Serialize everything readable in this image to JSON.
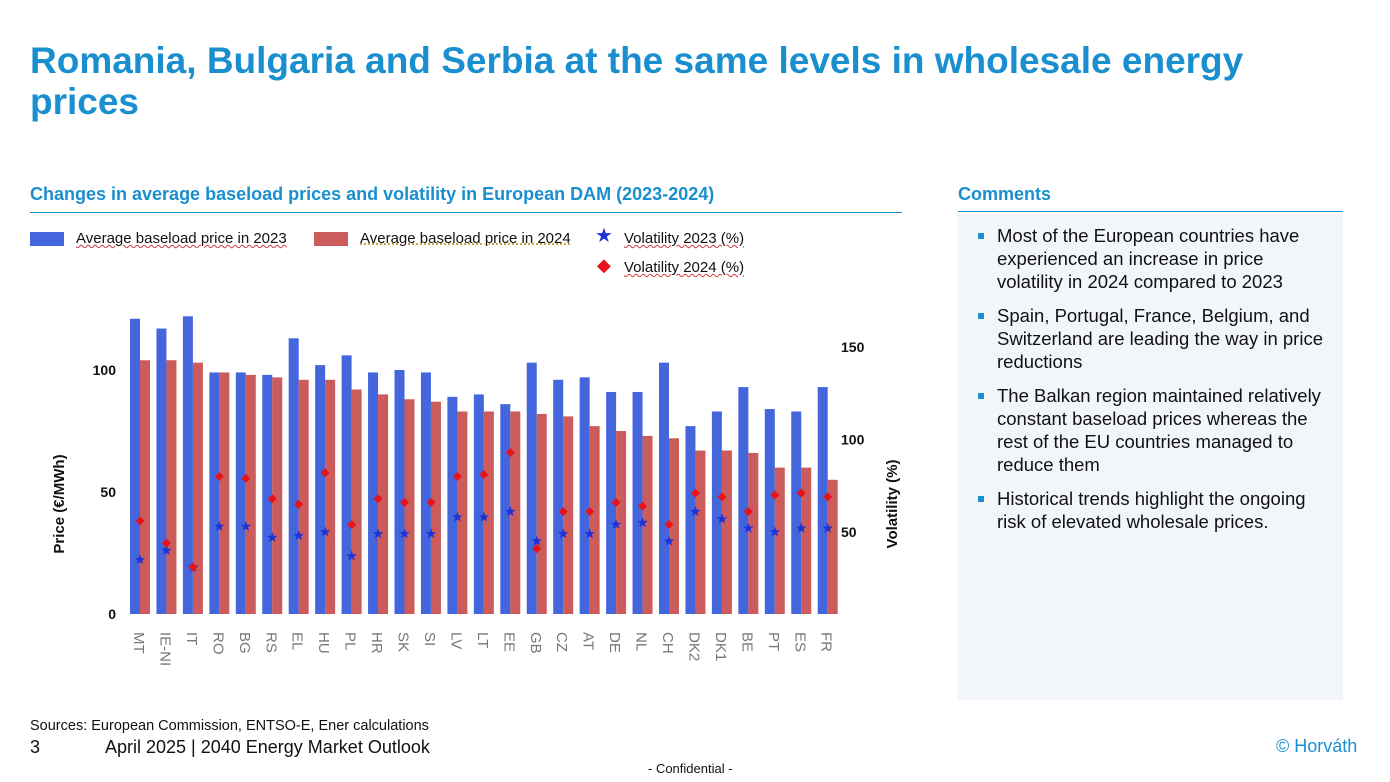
{
  "title": "Romania, Bulgaria and Serbia at the same levels in wholesale energy prices",
  "chart_heading": "Changes in average baseload prices and volatility in European DAM (2023-2024)",
  "comments_heading": "Comments",
  "comments": [
    "Most of the European countries have experienced an increase in price volatility in 2024 compared to 2023",
    "Spain, Portugal, France, Belgium, and Switzerland are leading the way in price reductions",
    "The Balkan region maintained relatively constant baseload prices whereas the rest of the EU countries managed to reduce them",
    "Historical trends highlight the ongoing risk of elevated wholesale prices."
  ],
  "legend": {
    "price_2023": "Average baseload price in 2023",
    "price_2024": "Average baseload price in 2024",
    "vol_2023": "Volatility 2023 (%)",
    "vol_2024": "Volatility 2024 (%)"
  },
  "sources": "Sources: European Commission, ENTSO-E, Ener calculations",
  "footer": {
    "page": "3",
    "text": "April 2025 | 2040 Energy Market Outlook",
    "copyright": "© Horváth",
    "confidential": "- Confidential -"
  },
  "colors": {
    "accent": "#1a8fcf",
    "bar_2023": "#4466dd",
    "bar_2024": "#cc5b5b",
    "star_2023": "#1f32d6",
    "diamond_2024": "#e8131a"
  },
  "chart_data": {
    "type": "bar",
    "categories": [
      "MT",
      "IE-NI",
      "IT",
      "RO",
      "BG",
      "RS",
      "EL",
      "HU",
      "PL",
      "HR",
      "SK",
      "SI",
      "LV",
      "LT",
      "EE",
      "GB",
      "CZ",
      "AT",
      "DE",
      "NL",
      "CH",
      "DK2",
      "DK1",
      "BE",
      "PT",
      "ES",
      "FR"
    ],
    "ylabel": "Price (€/MWh)",
    "y2label": "Volatility (%)",
    "ylim": [
      0,
      120
    ],
    "y2lim": [
      30,
      170
    ],
    "yticks": [
      0,
      50,
      100
    ],
    "y2ticks": [
      50,
      100,
      150
    ],
    "series": [
      {
        "name": "Average baseload price in 2023",
        "axis": "left",
        "kind": "bar",
        "values": [
          121,
          117,
          122,
          99,
          99,
          98,
          113,
          102,
          106,
          99,
          100,
          99,
          89,
          90,
          86,
          103,
          96,
          97,
          91,
          91,
          103,
          77,
          83,
          93,
          84,
          83,
          93
        ]
      },
      {
        "name": "Average baseload price in 2024",
        "axis": "left",
        "kind": "bar",
        "values": [
          104,
          104,
          103,
          99,
          98,
          97,
          96,
          96,
          92,
          90,
          88,
          87,
          83,
          83,
          83,
          82,
          81,
          77,
          75,
          73,
          72,
          67,
          67,
          66,
          60,
          60,
          55
        ]
      },
      {
        "name": "Volatility 2023 (%)",
        "axis": "right",
        "kind": "star",
        "values": [
          35,
          40,
          31,
          53,
          53,
          47,
          48,
          50,
          37,
          49,
          49,
          49,
          58,
          58,
          61,
          45,
          49,
          49,
          54,
          55,
          45,
          61,
          57,
          52,
          50,
          52,
          52
        ]
      },
      {
        "name": "Volatility 2024 (%)",
        "axis": "right",
        "kind": "diamond",
        "values": [
          56,
          44,
          31,
          80,
          79,
          68,
          65,
          82,
          54,
          68,
          66,
          66,
          80,
          81,
          93,
          41,
          61,
          61,
          66,
          64,
          54,
          71,
          69,
          61,
          70,
          71,
          69
        ]
      }
    ]
  }
}
